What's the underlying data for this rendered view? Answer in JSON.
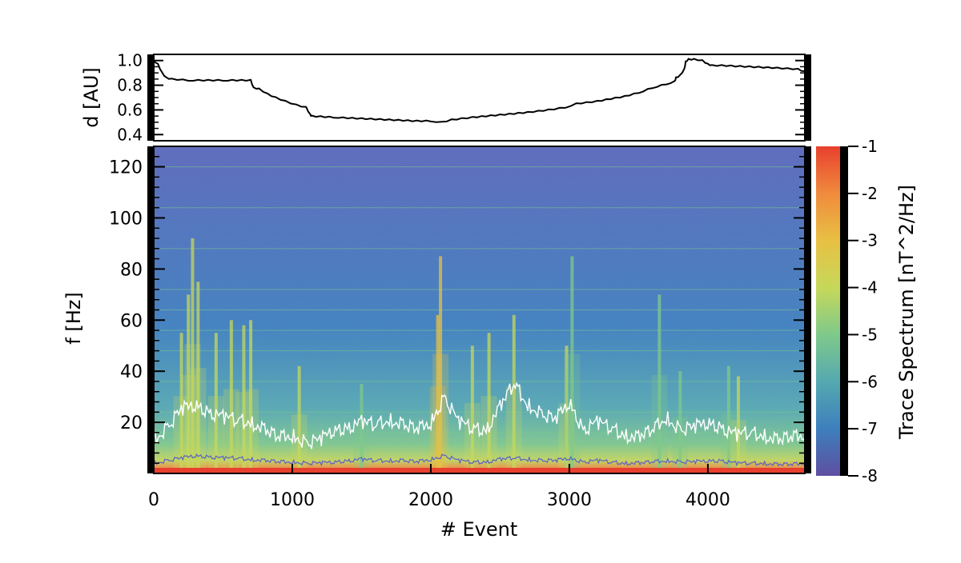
{
  "chart_data": [
    {
      "type": "line",
      "ylabel": "d [AU]",
      "xlim": [
        0,
        4700
      ],
      "ylim": [
        0.35,
        1.05
      ],
      "yticks": [
        "0.4",
        "0.6",
        "0.8",
        "1.0"
      ],
      "ytick_values": [
        0.4,
        0.6,
        0.8,
        1.0
      ],
      "series": [
        {
          "x": [
            0,
            30,
            60,
            90,
            130,
            250,
            500,
            700,
            720,
            760,
            820,
            880,
            950,
            1030,
            1100,
            1130,
            1140,
            1300,
            1500,
            1700,
            1900,
            2000,
            2080,
            2150,
            2300,
            2500,
            2700,
            2850,
            2970,
            3050,
            3200,
            3400,
            3500,
            3600,
            3700,
            3760,
            3770,
            3800,
            3830,
            3840,
            3860,
            3900,
            3960,
            4000,
            4030,
            4100,
            4300,
            4500,
            4650,
            4700
          ],
          "values": [
            1.0,
            0.97,
            0.9,
            0.86,
            0.85,
            0.84,
            0.84,
            0.84,
            0.78,
            0.77,
            0.73,
            0.7,
            0.67,
            0.64,
            0.62,
            0.56,
            0.55,
            0.54,
            0.53,
            0.52,
            0.51,
            0.51,
            0.5,
            0.52,
            0.54,
            0.56,
            0.58,
            0.6,
            0.62,
            0.65,
            0.67,
            0.71,
            0.74,
            0.78,
            0.81,
            0.83,
            0.86,
            0.88,
            0.93,
            0.99,
            1.01,
            1.01,
            1.0,
            0.97,
            0.96,
            0.96,
            0.95,
            0.94,
            0.93,
            0.91
          ]
        }
      ]
    },
    {
      "type": "heatmap",
      "xlabel": "# Event",
      "ylabel": "f [Hz]",
      "xlim": [
        0,
        4700
      ],
      "ylim": [
        0,
        128
      ],
      "xticks": [
        "0",
        "1000",
        "2000",
        "3000",
        "4000"
      ],
      "xtick_values": [
        0,
        1000,
        2000,
        3000,
        4000
      ],
      "yticks": [
        "20",
        "40",
        "60",
        "80",
        "100",
        "120"
      ],
      "ytick_values": [
        20,
        40,
        60,
        80,
        100,
        120
      ],
      "colorbar": {
        "label": "Trace Spectrum [nT^2/Hz]",
        "range": [
          -8,
          -1
        ],
        "ticks": [
          "-1",
          "-2",
          "-3",
          "-4",
          "-5",
          "-6",
          "-7",
          "-8"
        ],
        "tick_values": [
          -1,
          -2,
          -3,
          -4,
          -5,
          -6,
          -7,
          -8
        ],
        "colormap": [
          "#5e4fa2",
          "#3d7fbd",
          "#55a9b0",
          "#7fc98a",
          "#c6d85a",
          "#e8c043",
          "#f08b3d",
          "#e8402e"
        ]
      },
      "background_level": -6.8,
      "overlays": [
        {
          "color": "#ffffff",
          "x": [
            0,
            100,
            200,
            300,
            400,
            500,
            600,
            700,
            800,
            900,
            1000,
            1100,
            1200,
            1300,
            1400,
            1500,
            1600,
            1700,
            1800,
            1900,
            2000,
            2100,
            2200,
            2300,
            2400,
            2500,
            2600,
            2700,
            2800,
            2900,
            3000,
            3100,
            3200,
            3300,
            3400,
            3500,
            3600,
            3700,
            3800,
            3900,
            4000,
            4100,
            4200,
            4300,
            4400,
            4500,
            4600,
            4700
          ],
          "values": [
            13,
            18,
            25,
            27,
            24,
            22,
            21,
            20,
            17,
            14,
            15,
            12,
            13,
            17,
            18,
            20,
            19,
            21,
            19,
            17,
            20,
            30,
            20,
            18,
            17,
            26,
            35,
            27,
            23,
            21,
            28,
            17,
            20,
            18,
            15,
            14,
            17,
            22,
            17,
            18,
            20,
            18,
            15,
            16,
            15,
            13,
            14,
            15
          ]
        },
        {
          "color": "#5b62c8",
          "x": [
            0,
            100,
            200,
            300,
            400,
            500,
            600,
            700,
            800,
            900,
            1000,
            1100,
            1200,
            1300,
            1400,
            1500,
            1600,
            1700,
            1800,
            1900,
            2000,
            2100,
            2200,
            2300,
            2400,
            2500,
            2600,
            2700,
            2800,
            2900,
            3000,
            3100,
            3200,
            3300,
            3400,
            3500,
            3600,
            3700,
            3800,
            3900,
            4000,
            4100,
            4200,
            4300,
            4400,
            4500,
            4600,
            4700
          ],
          "values": [
            4,
            5,
            6,
            7,
            6.5,
            6,
            6,
            5.5,
            5,
            4.5,
            4.5,
            4,
            4,
            4.5,
            5,
            5.5,
            5,
            5,
            5,
            4.5,
            5.5,
            7,
            5,
            4.5,
            4.5,
            5.5,
            6,
            5.5,
            5,
            5,
            6,
            4.5,
            5,
            4.5,
            4,
            4,
            4.5,
            5,
            4.5,
            4.5,
            5,
            5,
            4,
            4,
            4,
            3.5,
            3.5,
            4
          ]
        }
      ],
      "spectral_features": [
        {
          "x": 200,
          "peak_hz": 55,
          "level": -4.0
        },
        {
          "x": 250,
          "peak_hz": 70,
          "level": -4.2
        },
        {
          "x": 280,
          "peak_hz": 92,
          "level": -4.5
        },
        {
          "x": 320,
          "peak_hz": 75,
          "level": -4.3
        },
        {
          "x": 450,
          "peak_hz": 55,
          "level": -4.4
        },
        {
          "x": 560,
          "peak_hz": 60,
          "level": -4.5
        },
        {
          "x": 650,
          "peak_hz": 58,
          "level": -4.4
        },
        {
          "x": 700,
          "peak_hz": 60,
          "level": -4.3
        },
        {
          "x": 1050,
          "peak_hz": 42,
          "level": -4.5
        },
        {
          "x": 1500,
          "peak_hz": 35,
          "level": -4.6
        },
        {
          "x": 2050,
          "peak_hz": 62,
          "level": -3.5
        },
        {
          "x": 2070,
          "peak_hz": 85,
          "level": -2.8
        },
        {
          "x": 2300,
          "peak_hz": 50,
          "level": -4.3
        },
        {
          "x": 2420,
          "peak_hz": 55,
          "level": -4.2
        },
        {
          "x": 2600,
          "peak_hz": 62,
          "level": -4.0
        },
        {
          "x": 2980,
          "peak_hz": 50,
          "level": -4.2
        },
        {
          "x": 3020,
          "peak_hz": 85,
          "level": -4.8
        },
        {
          "x": 3650,
          "peak_hz": 70,
          "level": -5.0
        },
        {
          "x": 3800,
          "peak_hz": 40,
          "level": -4.8
        },
        {
          "x": 4150,
          "peak_hz": 42,
          "level": -4.6
        },
        {
          "x": 4220,
          "peak_hz": 38,
          "level": -4.5
        }
      ],
      "horizontal_lines_hz": [
        120,
        104,
        88,
        72,
        64,
        56,
        48,
        36,
        24,
        16
      ]
    }
  ]
}
